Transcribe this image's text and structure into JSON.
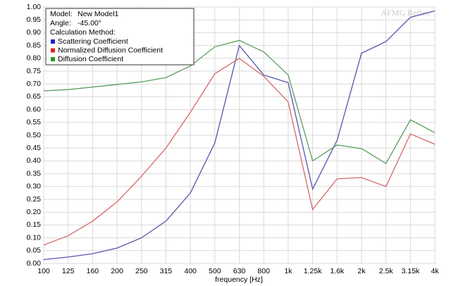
{
  "chart_data": {
    "type": "line",
    "watermark": "AFMG Reflex",
    "info": [
      {
        "label": "Model:",
        "value": "New Model1"
      },
      {
        "label": "Angle:",
        "value": "-45.00°"
      }
    ],
    "method_heading": "Calculation Method:",
    "xlabel": "frequency [Hz]",
    "categories": [
      "100",
      "125",
      "160",
      "200",
      "250",
      "315",
      "400",
      "500",
      "630",
      "800",
      "1k",
      "1.25k",
      "1.6k",
      "2k",
      "2.5k",
      "3.15k",
      "4k"
    ],
    "series": [
      {
        "name": "Scattering Coefficient",
        "color": "#5555b0",
        "legend_color": "#1f1fd0",
        "values": [
          0.015,
          0.025,
          0.038,
          0.06,
          0.1,
          0.165,
          0.275,
          0.47,
          0.85,
          0.735,
          0.705,
          0.29,
          0.48,
          0.82,
          0.865,
          0.96,
          0.985
        ]
      },
      {
        "name": "Normalized Diffusion Coefficient",
        "color": "#d46868",
        "legend_color": "#e02020",
        "values": [
          0.072,
          0.108,
          0.165,
          0.24,
          0.34,
          0.45,
          0.59,
          0.74,
          0.8,
          0.73,
          0.63,
          0.21,
          0.33,
          0.335,
          0.3,
          0.505,
          0.465
        ]
      },
      {
        "name": "Diffusion Coefficient",
        "color": "#5c9e5c",
        "legend_color": "#1f9a1f",
        "values": [
          0.673,
          0.678,
          0.688,
          0.698,
          0.708,
          0.725,
          0.77,
          0.845,
          0.87,
          0.825,
          0.735,
          0.4,
          0.462,
          0.448,
          0.39,
          0.56,
          0.51
        ]
      }
    ],
    "ylim": [
      0,
      1
    ],
    "yticks": [
      {
        "value": 0,
        "label": "0.00"
      },
      {
        "value": 0.05,
        "label": "0.05"
      },
      {
        "value": 0.1,
        "label": "0.10"
      },
      {
        "value": 0.15,
        "label": "0.15"
      },
      {
        "value": 0.2,
        "label": "0.20"
      },
      {
        "value": 0.25,
        "label": "0.25"
      },
      {
        "value": 0.3,
        "label": "0.30"
      },
      {
        "value": 0.35,
        "label": "0.35"
      },
      {
        "value": 0.4,
        "label": "0.40"
      },
      {
        "value": 0.45,
        "label": "0.45"
      },
      {
        "value": 0.5,
        "label": "0.50"
      },
      {
        "value": 0.55,
        "label": "0.55"
      },
      {
        "value": 0.6,
        "label": "0.60"
      },
      {
        "value": 0.65,
        "label": "0.65"
      },
      {
        "value": 0.7,
        "label": "0.70"
      },
      {
        "value": 0.75,
        "label": "0.75"
      },
      {
        "value": 0.8,
        "label": "0.80"
      },
      {
        "value": 0.85,
        "label": "0.85"
      },
      {
        "value": 0.9,
        "label": "0.90"
      },
      {
        "value": 0.95,
        "label": "0.95"
      },
      {
        "value": 1,
        "label": "1.00"
      }
    ],
    "grid": true
  }
}
